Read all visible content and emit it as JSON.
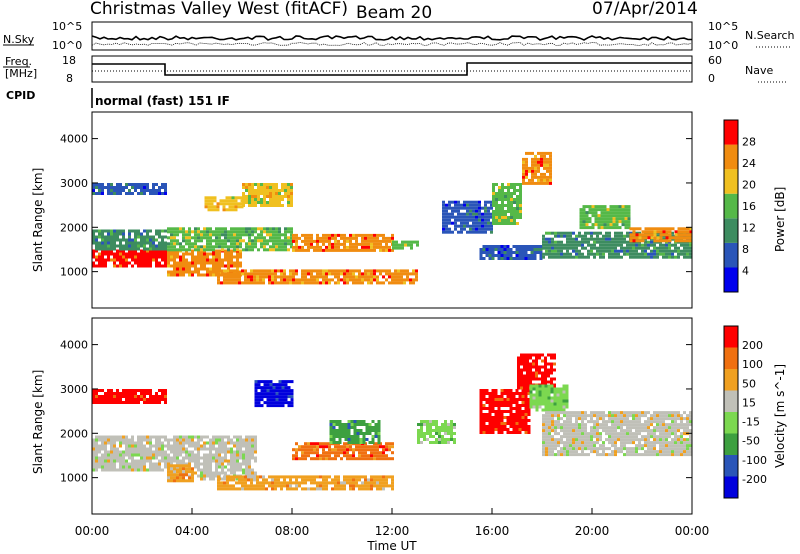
{
  "header": {
    "site": "Christmas Valley West (fitACF)",
    "beam": "Beam 20",
    "date": "07/Apr/2014"
  },
  "top_panels": {
    "nsky_label": "N.Sky",
    "nsearch_label": "N.Search",
    "nsky_ticks": [
      "10^5",
      "10^0"
    ],
    "nsearch_ticks": [
      "10^5",
      "10^0"
    ],
    "freq_label": "Freq.",
    "freq_unit": "[MHz]",
    "freq_ticks": [
      "18",
      "8"
    ],
    "nave_label": "Nave",
    "nave_ticks": [
      "60",
      "0"
    ],
    "cpid_label": "CPID",
    "cpid_value": "normal (fast) 151 IF"
  },
  "chart_data": [
    {
      "type": "heatmap",
      "name": "power",
      "ylabel": "Slant Range [km]",
      "yticks": [
        "4000",
        "3000",
        "2000",
        "1000"
      ],
      "ylim": [
        180,
        4600
      ],
      "colorbar_label": "Power [dB]",
      "colorbar_ticks": [
        "28",
        "24",
        "20",
        "16",
        "12",
        "8",
        "4"
      ],
      "colors": [
        "#0000ee",
        "#2a55b8",
        "#3d8c60",
        "#55b848",
        "#f0c020",
        "#f08c10",
        "#ff0000"
      ],
      "bands": [
        {
          "x": [
            0,
            3
          ],
          "y": [
            1150,
            1500
          ],
          "level": 6
        },
        {
          "x": [
            0,
            3
          ],
          "y": [
            1500,
            1950
          ],
          "level": 2
        },
        {
          "x": [
            0,
            3
          ],
          "y": [
            2750,
            3000
          ],
          "level": 1
        },
        {
          "x": [
            3,
            6
          ],
          "y": [
            900,
            1500
          ],
          "level": 5
        },
        {
          "x": [
            3,
            8
          ],
          "y": [
            1500,
            2000
          ],
          "level": 3
        },
        {
          "x": [
            4.5,
            6
          ],
          "y": [
            2400,
            2700
          ],
          "level": 4
        },
        {
          "x": [
            6,
            8
          ],
          "y": [
            2500,
            3000
          ],
          "level": 4
        },
        {
          "x": [
            5,
            13
          ],
          "y": [
            750,
            1050
          ],
          "level": 5
        },
        {
          "x": [
            8,
            12
          ],
          "y": [
            1500,
            1850
          ],
          "level": 5
        },
        {
          "x": [
            12,
            13
          ],
          "y": [
            1500,
            1700
          ],
          "level": 3
        },
        {
          "x": [
            14,
            16
          ],
          "y": [
            1900,
            2600
          ],
          "level": 1
        },
        {
          "x": [
            16,
            17.2
          ],
          "y": [
            2100,
            3000
          ],
          "level": 3
        },
        {
          "x": [
            17.2,
            18.3
          ],
          "y": [
            3000,
            3700
          ],
          "level": 5
        },
        {
          "x": [
            15.5,
            18
          ],
          "y": [
            1300,
            1600
          ],
          "level": 1
        },
        {
          "x": [
            18,
            24
          ],
          "y": [
            1300,
            1900
          ],
          "level": 2
        },
        {
          "x": [
            19.5,
            21.5
          ],
          "y": [
            2000,
            2500
          ],
          "level": 3
        },
        {
          "x": [
            21.5,
            24
          ],
          "y": [
            1700,
            2000
          ],
          "level": 5
        }
      ]
    },
    {
      "type": "heatmap",
      "name": "velocity",
      "xlabel": "Time UT",
      "ylabel": "Slant Range [km]",
      "xticks": [
        "00:00",
        "04:00",
        "08:00",
        "12:00",
        "16:00",
        "20:00",
        "00:00"
      ],
      "xlim": [
        0,
        24
      ],
      "yticks": [
        "4000",
        "3000",
        "2000",
        "1000"
      ],
      "ylim": [
        180,
        4600
      ],
      "colorbar_label": "Velocity [m s^-1]",
      "colorbar_ticks": [
        "200",
        "100",
        "50",
        "15",
        "-15",
        "-50",
        "-100",
        "-200"
      ],
      "colors": [
        "#0000dd",
        "#2a55b8",
        "#3da040",
        "#7cd850",
        "#c0c0b8",
        "#f0a020",
        "#f07010",
        "#ff0000"
      ],
      "bands": [
        {
          "x": [
            0,
            3
          ],
          "y": [
            1150,
            1950
          ],
          "level": 4
        },
        {
          "x": [
            0,
            3
          ],
          "y": [
            2700,
            3000
          ],
          "level": 7
        },
        {
          "x": [
            3,
            6.5
          ],
          "y": [
            1000,
            1950
          ],
          "level": 4
        },
        {
          "x": [
            3,
            4
          ],
          "y": [
            900,
            1300
          ],
          "level": 5
        },
        {
          "x": [
            6.5,
            8
          ],
          "y": [
            2600,
            3200
          ],
          "level": 0
        },
        {
          "x": [
            5,
            12
          ],
          "y": [
            750,
            1050
          ],
          "level": 5
        },
        {
          "x": [
            8,
            12
          ],
          "y": [
            1400,
            1800
          ],
          "level": 6
        },
        {
          "x": [
            9.5,
            11.5
          ],
          "y": [
            1800,
            2300
          ],
          "level": 2
        },
        {
          "x": [
            13,
            14.5
          ],
          "y": [
            1800,
            2300
          ],
          "level": 3
        },
        {
          "x": [
            15.5,
            17.5
          ],
          "y": [
            2000,
            3000
          ],
          "level": 7
        },
        {
          "x": [
            17,
            18.5
          ],
          "y": [
            3000,
            3800
          ],
          "level": 7
        },
        {
          "x": [
            17.5,
            19
          ],
          "y": [
            2500,
            3100
          ],
          "level": 3
        },
        {
          "x": [
            18,
            24
          ],
          "y": [
            1500,
            2500
          ],
          "level": 4
        }
      ]
    }
  ]
}
